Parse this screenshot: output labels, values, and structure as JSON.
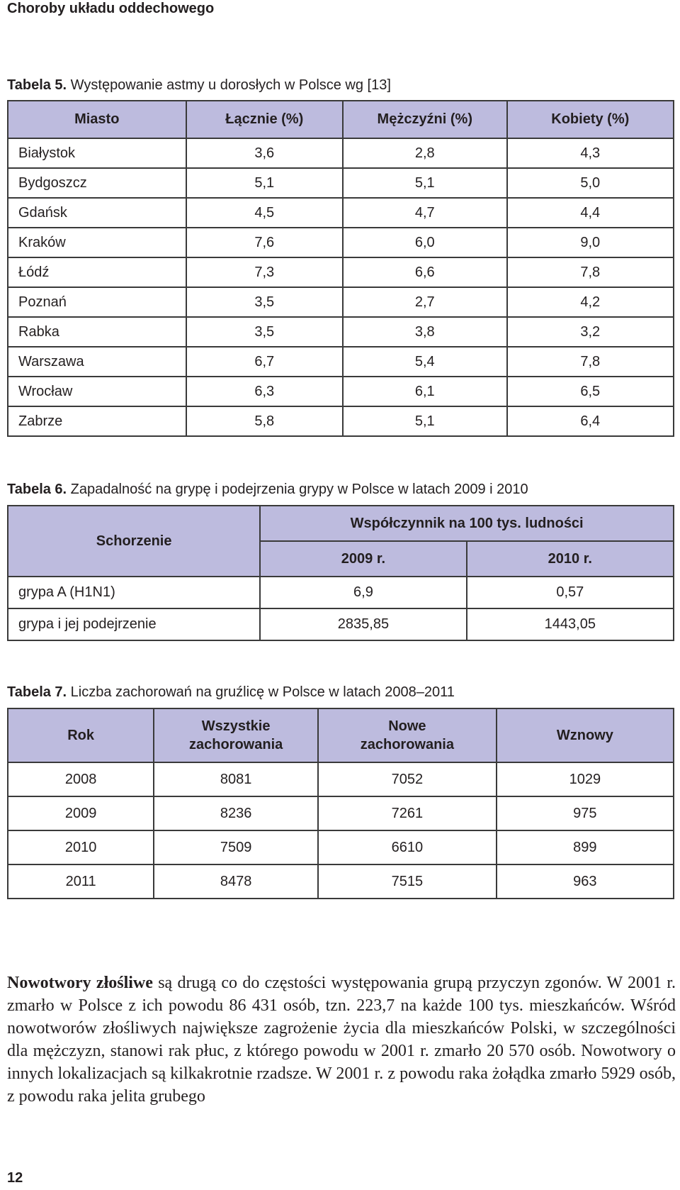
{
  "running_head": "Choroby układu oddechowego",
  "table5": {
    "caption_label": "Tabela 5.",
    "caption_text": " Występowanie astmy u dorosłych w Polsce wg [13]",
    "headers": [
      "Miasto",
      "Łącznie (%)",
      "Mężczyźni (%)",
      "Kobiety (%)"
    ],
    "rows": [
      [
        "Białystok",
        "3,6",
        "2,8",
        "4,3"
      ],
      [
        "Bydgoszcz",
        "5,1",
        "5,1",
        "5,0"
      ],
      [
        "Gdańsk",
        "4,5",
        "4,7",
        "4,4"
      ],
      [
        "Kraków",
        "7,6",
        "6,0",
        "9,0"
      ],
      [
        "Łódź",
        "7,3",
        "6,6",
        "7,8"
      ],
      [
        "Poznań",
        "3,5",
        "2,7",
        "4,2"
      ],
      [
        "Rabka",
        "3,5",
        "3,8",
        "3,2"
      ],
      [
        "Warszawa",
        "6,7",
        "5,4",
        "7,8"
      ],
      [
        "Wrocław",
        "6,3",
        "6,1",
        "6,5"
      ],
      [
        "Zabrze",
        "5,8",
        "5,1",
        "6,4"
      ]
    ]
  },
  "table6": {
    "caption_label": "Tabela 6.",
    "caption_text": " Zapadalność na grypę i podejrzenia grypy w Polsce w latach 2009 i 2010",
    "header_disease": "Schorzenie",
    "header_group": "Współczynnik na 100 tys. ludności",
    "header_2009": "2009 r.",
    "header_2010": "2010 r.",
    "rows": [
      [
        "grypa A (H1N1)",
        "6,9",
        "0,57"
      ],
      [
        "grypa i jej podejrzenie",
        "2835,85",
        "1443,05"
      ]
    ]
  },
  "table7": {
    "caption_label": "Tabela 7.",
    "caption_text": " Liczba zachorowań na gruźlicę w Polsce w latach 2008–2011",
    "headers": [
      "Rok",
      "Wszystkie zachorowania",
      "Nowe zachorowania",
      "Wznowy"
    ],
    "rows": [
      [
        "2008",
        "8081",
        "7052",
        "1029"
      ],
      [
        "2009",
        "8236",
        "7261",
        "975"
      ],
      [
        "2010",
        "7509",
        "6610",
        "899"
      ],
      [
        "2011",
        "8478",
        "7515",
        "963"
      ]
    ]
  },
  "body": {
    "bold_lead": "Nowotwory złośliwe",
    "text": " są drugą co do częstości występowania grupą przyczyn zgonów. W 2001 r. zmarło w Polsce z ich powodu 86 431 osób, tzn. 223,7 na każde 100 tys. mieszkańców. Wśród nowotworów złośliwych największe zagrożenie życia dla mieszkańców Polski, w szczególności dla mężczyzn, stanowi rak płuc, z którego powodu w 2001 r. zmarło 20 570 osób. Nowotwory o innych lokalizacjach są kilkakrotnie rzadsze. W 2001 r. z powodu raka żołądka zmarło 5929 osób, z powodu raka jelita grubego"
  },
  "page_number": "12"
}
